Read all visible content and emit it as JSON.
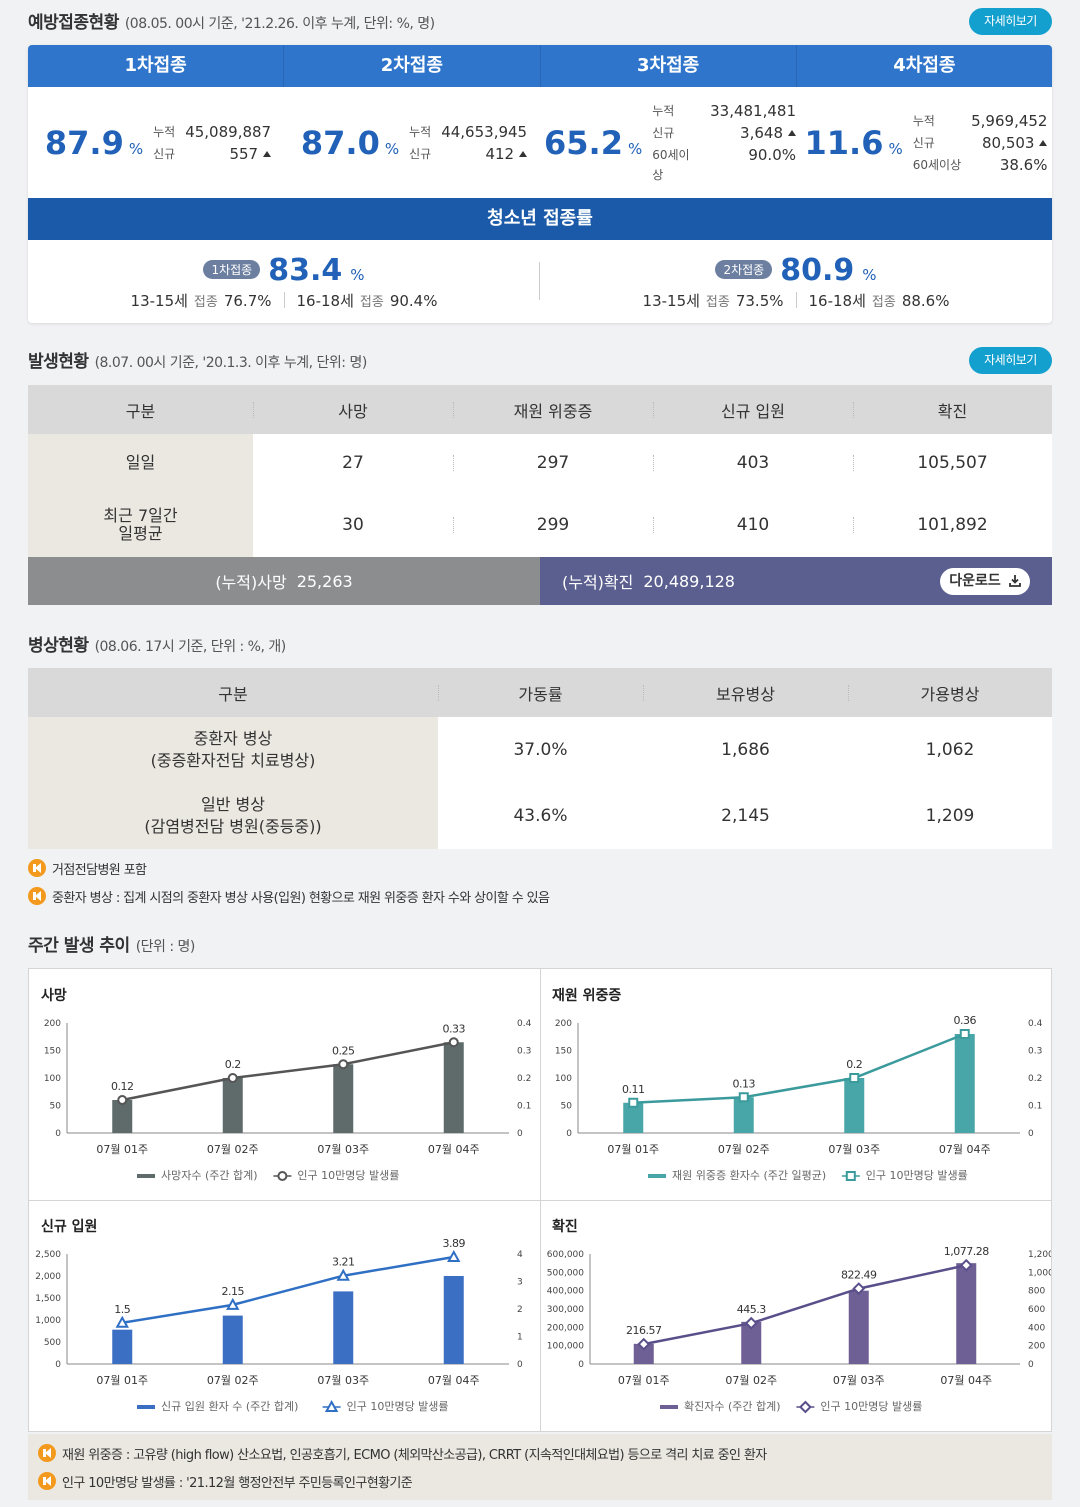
{
  "vaccination": {
    "title": "예방접종현황",
    "subtitle": "(08.05. 00시 기준, '21.2.26. 이후 누계, 단위: %, 명)",
    "more_label": "자세히보기",
    "doses": [
      {
        "label": "1차접종",
        "pct": "87.9",
        "unit": "%",
        "cum_label": "누적",
        "cum": "45,089,887",
        "new_label": "신규",
        "new": "557"
      },
      {
        "label": "2차접종",
        "pct": "87.0",
        "unit": "%",
        "cum_label": "누적",
        "cum": "44,653,945",
        "new_label": "신규",
        "new": "412"
      },
      {
        "label": "3차접종",
        "pct": "65.2",
        "unit": "%",
        "cum_label": "누적",
        "cum": "33,481,481",
        "new_label": "신규",
        "new": "3,648",
        "age_label": "60세이상",
        "age": "90.0%"
      },
      {
        "label": "4차접종",
        "pct": "11.6",
        "unit": "%",
        "cum_label": "누적",
        "cum": "5,969,452",
        "new_label": "신규",
        "new": "80,503",
        "age_label": "60세이상",
        "age": "38.6%"
      }
    ],
    "teen": {
      "title": "청소년 접종률",
      "items": [
        {
          "badge": "1차접종",
          "pct": "83.4",
          "unit": "%",
          "a_age": "13-15세",
          "a_label": "접종",
          "a_val": "76.7%",
          "b_age": "16-18세",
          "b_label": "접종",
          "b_val": "90.4%"
        },
        {
          "badge": "2차접종",
          "pct": "80.9",
          "unit": "%",
          "a_age": "13-15세",
          "a_label": "접종",
          "a_val": "73.5%",
          "b_age": "16-18세",
          "b_label": "접종",
          "b_val": "88.6%"
        }
      ]
    }
  },
  "occurrence": {
    "title": "발생현황",
    "subtitle": "(8.07. 00시 기준, '20.1.3. 이후 누계, 단위: 명)",
    "more_label": "자세히보기",
    "headers": [
      "구분",
      "사망",
      "재원 위중증",
      "신규 입원",
      "확진"
    ],
    "rows": [
      {
        "label": "일일",
        "cells": [
          "27",
          "297",
          "403",
          "105,507"
        ]
      },
      {
        "label": "최근 7일간\n일평균",
        "cells": [
          "30",
          "299",
          "410",
          "101,892"
        ]
      }
    ],
    "cum_death_label": "(누적)사망",
    "cum_death": "25,263",
    "cum_conf_label": "(누적)확진",
    "cum_conf": "20,489,128",
    "download_label": "다운로드"
  },
  "beds": {
    "title": "병상현황",
    "subtitle": "(08.06. 17시 기준, 단위 : %, 개)",
    "headers": [
      "구분",
      "가동률",
      "보유병상",
      "가용병상"
    ],
    "rows": [
      {
        "label1": "중환자 병상",
        "label2": "(중증환자전담 치료병상)",
        "cells": [
          "37.0%",
          "1,686",
          "1,062"
        ]
      },
      {
        "label1": "일반 병상",
        "label2": "(감염병전담 병원(중등중))",
        "cells": [
          "43.6%",
          "2,145",
          "1,209"
        ]
      }
    ],
    "notes": [
      "거점전담병원 포함",
      "중환자 병상 : 집계 시점의 중환자 병상 사용(입원) 현황으로 재원 위중증 환자 수와 상이할 수 있음"
    ]
  },
  "weekly": {
    "title": "주간 발생 추이",
    "subtitle": "(단위 : 명)",
    "notes": [
      "재원 위중증 : 고유량 (high flow) 산소요법, 인공호흡기, ECMO (체외막산소공급), CRRT (지속적인대체요법) 등으로 격리 치료 중인 환자",
      "인구 10만명당 발생률 : '21.12월 행정안전부 주민등록인구현황기준"
    ]
  },
  "chart_data": [
    {
      "type": "bar",
      "title": "사망",
      "categories": [
        "07월 01주",
        "07월 02주",
        "07월 03주",
        "07월 04주"
      ],
      "series": [
        {
          "name": "사망자수 (주간 합계)",
          "values": [
            60,
            100,
            125,
            165
          ],
          "color": "#5f6a6b"
        },
        {
          "name": "인구 10만명당 발생률",
          "values": [
            0.12,
            0.2,
            0.25,
            0.33
          ],
          "color": "#555555",
          "axis": "right",
          "marker": "circle"
        }
      ],
      "ylim": [
        0,
        200
      ],
      "y_ticks": [
        0,
        50,
        100,
        150,
        200
      ],
      "y2lim": [
        0,
        0.4
      ],
      "y2_ticks": [
        0,
        0.1,
        0.2,
        0.3,
        0.4
      ],
      "labels": [
        "0.12",
        "0.2",
        "0.25",
        "0.33"
      ]
    },
    {
      "type": "bar",
      "title": "재원 위중증",
      "categories": [
        "07월 01주",
        "07월 02주",
        "07월 03주",
        "07월 04주"
      ],
      "series": [
        {
          "name": "재원 위중증 환자수 (주간 일평균)",
          "values": [
            55,
            65,
            100,
            180
          ],
          "color": "#48a6a8"
        },
        {
          "name": "인구 10만명당 발생률",
          "values": [
            0.11,
            0.13,
            0.2,
            0.36
          ],
          "color": "#3a9a9c",
          "axis": "right",
          "marker": "square"
        }
      ],
      "ylim": [
        0,
        200
      ],
      "y_ticks": [
        0,
        50,
        100,
        150,
        200
      ],
      "y2lim": [
        0,
        0.4
      ],
      "y2_ticks": [
        0,
        0.1,
        0.2,
        0.3,
        0.4
      ],
      "labels": [
        "0.11",
        "0.13",
        "0.2",
        "0.36"
      ]
    },
    {
      "type": "bar",
      "title": "신규 입원",
      "categories": [
        "07월 01주",
        "07월 02주",
        "07월 03주",
        "07월 04주"
      ],
      "series": [
        {
          "name": "신규 입원 환자 수 (주간 합계)",
          "values": [
            780,
            1100,
            1650,
            2000
          ],
          "color": "#3a6fc4"
        },
        {
          "name": "인구 10만명당 발생률",
          "values": [
            1.5,
            2.15,
            3.21,
            3.89
          ],
          "color": "#2f6fc4",
          "axis": "right",
          "marker": "triangle"
        }
      ],
      "ylim": [
        0,
        2500
      ],
      "y_ticks": [
        0,
        500,
        1000,
        1500,
        2000,
        2500
      ],
      "y_tick_labels": [
        "0",
        "500",
        "1,000",
        "1,500",
        "2,000",
        "2,500"
      ],
      "y2lim": [
        0,
        4
      ],
      "y2_ticks": [
        0,
        1,
        2,
        3,
        4
      ],
      "labels": [
        "1.5",
        "2.15",
        "3.21",
        "3.89"
      ]
    },
    {
      "type": "bar",
      "title": "확진",
      "categories": [
        "07월 01주",
        "07월 02주",
        "07월 03주",
        "07월 04주"
      ],
      "series": [
        {
          "name": "확진자수 (주간 합계)",
          "values": [
            110000,
            230000,
            400000,
            550000
          ],
          "color": "#6e5f94"
        },
        {
          "name": "인구 10만명당 발생률",
          "values": [
            216.57,
            445.3,
            822.49,
            1077.28
          ],
          "color": "#5a4f8a",
          "axis": "right",
          "marker": "diamond"
        }
      ],
      "ylim": [
        0,
        600000
      ],
      "y_ticks": [
        0,
        100000,
        200000,
        300000,
        400000,
        500000,
        600000
      ],
      "y_tick_labels": [
        "0",
        "100,000",
        "200,000",
        "300,000",
        "400,000",
        "500,000",
        "600,000"
      ],
      "y2lim": [
        0,
        1200
      ],
      "y2_ticks": [
        0,
        200,
        400,
        600,
        800,
        1000,
        1200
      ],
      "y2_tick_labels": [
        "0",
        "200",
        "400",
        "600",
        "800",
        "1,000",
        "1,200"
      ],
      "labels": [
        "216.57",
        "445.3",
        "822.49",
        "1,077.28"
      ]
    }
  ]
}
